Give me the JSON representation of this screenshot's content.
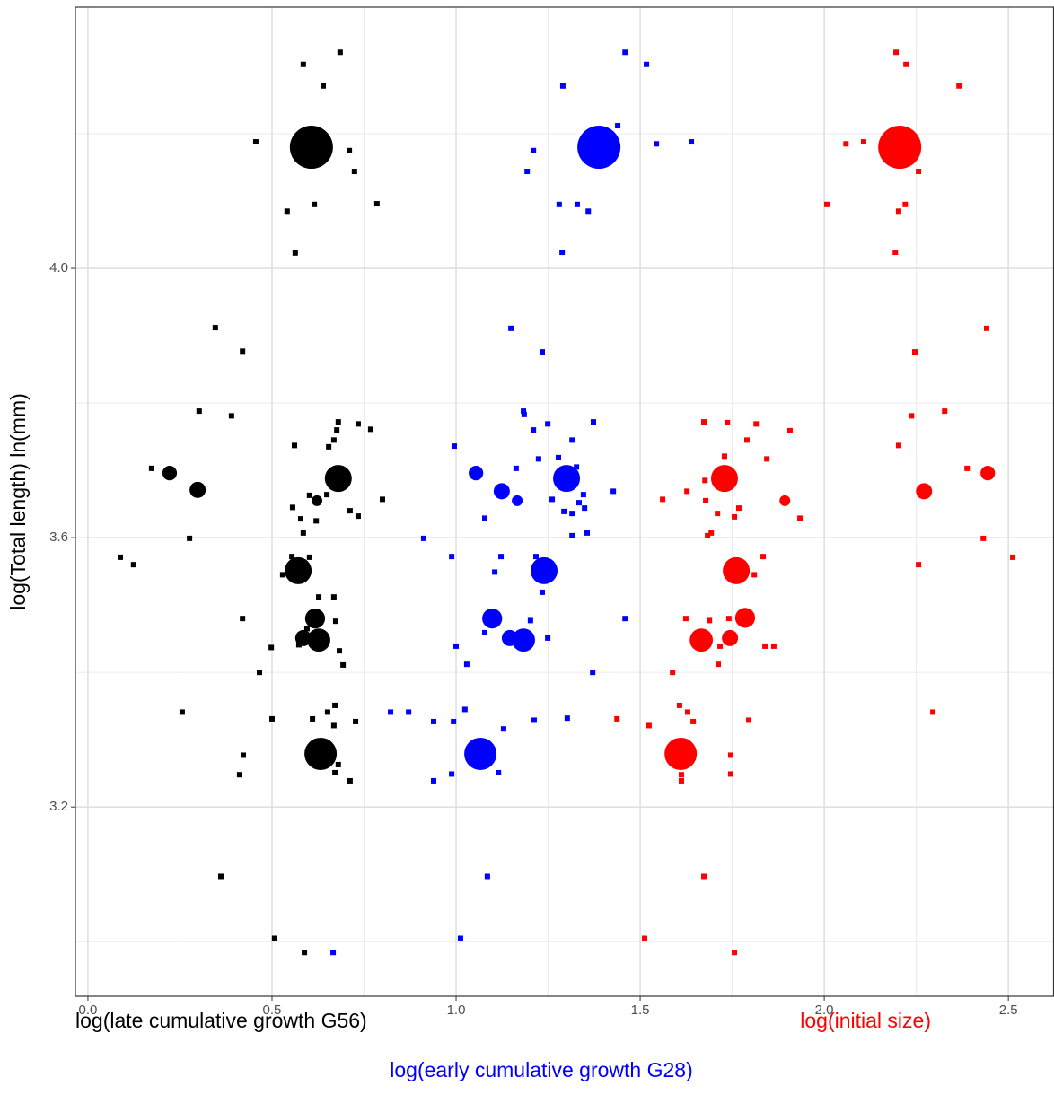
{
  "chart_data": {
    "type": "scatter",
    "y_label": "log(Total length) ln(mm)",
    "xlim": [
      -0.034,
      2.624
    ],
    "ylim": [
      2.919,
      4.388
    ],
    "xticks": [
      {
        "value": 0,
        "label": "0.0"
      },
      0.5,
      {
        "value": 1,
        "label": "1.0"
      },
      1.5,
      {
        "value": 2,
        "label": "2.0"
      },
      2.5
    ],
    "yticks": [
      3.2,
      3.6,
      {
        "value": 4,
        "label": "4.0"
      }
    ],
    "grid": true,
    "series": [
      {
        "name": "log(late cumulative growth G56)",
        "color": "#000000",
        "x": [
          0.685,
          0.585,
          0.639,
          0.456,
          0.71,
          0.724,
          0.541,
          0.615,
          0.785,
          0.563,
          0.346,
          0.42,
          0.302,
          0.39,
          0.68,
          0.676,
          0.734,
          0.768,
          0.668,
          0.561,
          0.654,
          0.173,
          0.602,
          0.649,
          0.556,
          0.712,
          0.734,
          0.8,
          0.578,
          0.62,
          0.276,
          0.585,
          0.088,
          0.124,
          0.554,
          0.602,
          0.529,
          0.668,
          0.627,
          0.42,
          0.673,
          0.595,
          0.498,
          0.573,
          0.683,
          0.693,
          0.466,
          0.256,
          0.671,
          0.651,
          0.5,
          0.61,
          0.727,
          0.668,
          0.422,
          0.68,
          0.412,
          0.671,
          0.712,
          0.361,
          0.507,
          0.588
        ],
        "y": [
          4.321,
          4.303,
          4.271,
          4.188,
          4.175,
          4.144,
          4.085,
          4.095,
          4.096,
          4.023,
          3.912,
          3.877,
          3.788,
          3.781,
          3.772,
          3.76,
          3.769,
          3.761,
          3.745,
          3.737,
          3.735,
          3.703,
          3.663,
          3.664,
          3.645,
          3.64,
          3.632,
          3.657,
          3.628,
          3.625,
          3.599,
          3.607,
          3.571,
          3.56,
          3.572,
          3.571,
          3.545,
          3.512,
          3.512,
          3.48,
          3.476,
          3.465,
          3.437,
          3.441,
          3.432,
          3.411,
          3.4,
          3.341,
          3.351,
          3.341,
          3.331,
          3.331,
          3.327,
          3.321,
          3.277,
          3.263,
          3.248,
          3.251,
          3.239,
          3.097,
          3.005,
          2.984
        ],
        "means": {
          "x": [
            0.607,
            0.68,
            0.571,
            0.617,
            0.627,
            0.585,
            0.632,
            0.222,
            0.298,
            0.622
          ],
          "y": [
            4.18,
            3.688,
            3.551,
            3.48,
            3.448,
            3.451,
            3.279,
            3.696,
            3.671,
            3.655
          ],
          "size": [
            8,
            5,
            5,
            3.7,
            4.3,
            3,
            6,
            2.7,
            3,
            2
          ]
        }
      },
      {
        "name": "log(early cumulative growth G28)",
        "color": "#0000ff",
        "x": [
          1.459,
          1.517,
          1.29,
          1.439,
          1.21,
          1.193,
          1.544,
          1.639,
          1.28,
          1.329,
          1.359,
          1.288,
          1.149,
          1.234,
          1.183,
          1.185,
          1.249,
          1.373,
          1.315,
          1.21,
          0.995,
          1.224,
          1.278,
          1.163,
          1.327,
          1.427,
          1.261,
          1.346,
          1.334,
          1.349,
          1.315,
          1.293,
          1.078,
          0.912,
          1.315,
          1.356,
          0.988,
          1.122,
          1.217,
          1.105,
          1.234,
          1.202,
          1.459,
          1.078,
          1.139,
          1.0,
          1.249,
          1.029,
          1.371,
          0.822,
          0.871,
          0.939,
          1.024,
          0.993,
          1.129,
          1.212,
          1.302,
          0.939,
          0.988,
          1.115,
          1.085,
          1.012,
          0.666
        ],
        "y": [
          4.321,
          4.303,
          4.271,
          4.212,
          4.175,
          4.144,
          4.185,
          4.188,
          4.095,
          4.095,
          4.085,
          4.024,
          3.911,
          3.876,
          3.788,
          3.783,
          3.769,
          3.772,
          3.745,
          3.76,
          3.736,
          3.717,
          3.719,
          3.703,
          3.705,
          3.669,
          3.657,
          3.664,
          3.652,
          3.644,
          3.636,
          3.639,
          3.629,
          3.599,
          3.603,
          3.607,
          3.572,
          3.572,
          3.572,
          3.549,
          3.519,
          3.477,
          3.48,
          3.459,
          3.451,
          3.439,
          3.451,
          3.412,
          3.4,
          3.341,
          3.341,
          3.327,
          3.345,
          3.327,
          3.316,
          3.329,
          3.332,
          3.239,
          3.249,
          3.251,
          3.097,
          3.005,
          2.984
        ],
        "means": {
          "x": [
            1.388,
            1.3,
            1.239,
            1.098,
            1.183,
            1.146,
            1.066,
            1.054,
            1.124,
            1.166
          ],
          "y": [
            4.18,
            3.688,
            3.551,
            3.48,
            3.448,
            3.451,
            3.279,
            3.696,
            3.669,
            3.655
          ],
          "size": [
            8,
            5,
            5,
            3.7,
            4.3,
            3,
            6,
            2.7,
            3,
            2
          ]
        }
      },
      {
        "name": "log(initial size)",
        "color": "#ff0000",
        "x": [
          2.195,
          2.222,
          2.366,
          2.059,
          2.107,
          2.256,
          2.007,
          2.22,
          2.202,
          2.193,
          2.441,
          2.246,
          2.237,
          2.327,
          2.202,
          1.673,
          1.737,
          1.815,
          1.79,
          1.844,
          1.907,
          1.729,
          1.676,
          1.561,
          1.627,
          1.678,
          1.768,
          1.71,
          1.756,
          1.693,
          1.683,
          1.934,
          2.388,
          1.834,
          1.81,
          2.432,
          2.512,
          2.256,
          1.624,
          1.688,
          1.741,
          1.839,
          1.863,
          1.717,
          1.588,
          1.712,
          1.607,
          1.629,
          1.644,
          1.795,
          1.524,
          1.437,
          2.295,
          1.746,
          1.746,
          1.612,
          1.612,
          1.673,
          1.512,
          1.756
        ],
        "y": [
          4.321,
          4.303,
          4.271,
          4.185,
          4.188,
          4.144,
          4.095,
          4.095,
          4.085,
          4.024,
          3.911,
          3.876,
          3.781,
          3.788,
          3.737,
          3.772,
          3.771,
          3.769,
          3.745,
          3.717,
          3.759,
          3.721,
          3.685,
          3.657,
          3.669,
          3.655,
          3.644,
          3.636,
          3.631,
          3.607,
          3.603,
          3.629,
          3.703,
          3.572,
          3.545,
          3.599,
          3.571,
          3.56,
          3.48,
          3.477,
          3.48,
          3.439,
          3.439,
          3.439,
          3.4,
          3.412,
          3.351,
          3.341,
          3.327,
          3.329,
          3.321,
          3.331,
          3.341,
          3.277,
          3.249,
          3.248,
          3.239,
          3.097,
          3.005,
          2.984
        ],
        "means": {
          "x": [
            2.205,
            1.729,
            1.761,
            1.785,
            1.666,
            1.744,
            1.61,
            2.444,
            2.271,
            1.893
          ],
          "y": [
            4.18,
            3.688,
            3.551,
            3.481,
            3.448,
            3.451,
            3.279,
            3.696,
            3.669,
            3.655
          ],
          "size": [
            8,
            5,
            5,
            3.7,
            4.3,
            3,
            6,
            2.7,
            3,
            2
          ]
        }
      }
    ]
  }
}
